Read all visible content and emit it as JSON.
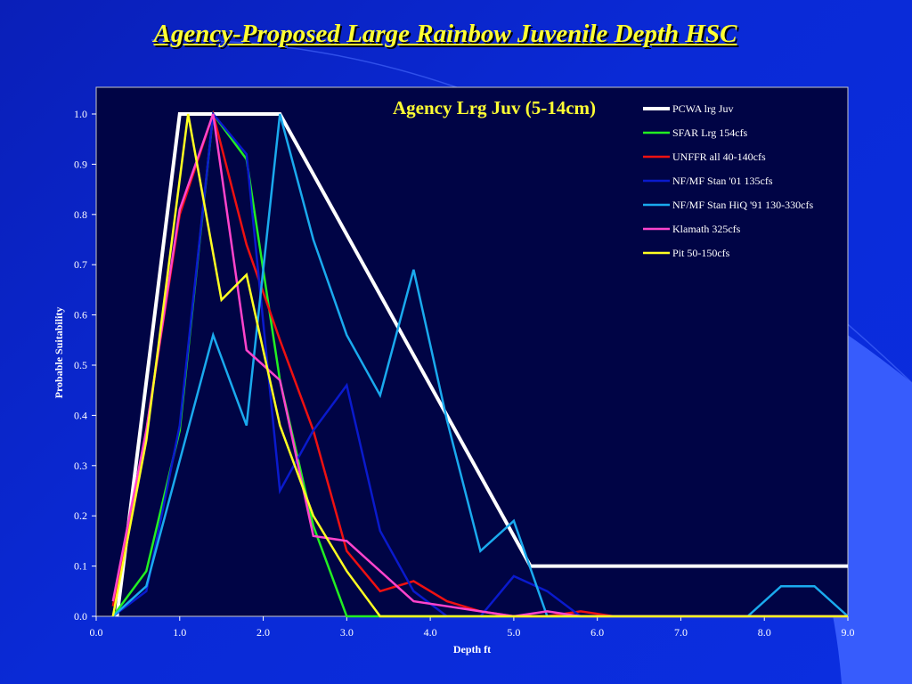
{
  "slide": {
    "title": "Agency-Proposed Large Rainbow Juvenile Depth HSC"
  },
  "colors": {
    "background": "#0b2ee0",
    "plot_background": "#000445",
    "title": "#ffff33",
    "decoration": "#3c62ff"
  },
  "chart_data": {
    "type": "line",
    "title": "Agency Lrg Juv (5-14cm)",
    "xlabel": "Depth ft",
    "ylabel": "Probable Suitability",
    "xlim": [
      0,
      9
    ],
    "ylim": [
      0,
      1
    ],
    "xticks": [
      "0.0",
      "1.0",
      "2.0",
      "3.0",
      "4.0",
      "5.0",
      "6.0",
      "7.0",
      "8.0",
      "9.0"
    ],
    "yticks": [
      "0.0",
      "0.1",
      "0.2",
      "0.3",
      "0.4",
      "0.5",
      "0.6",
      "0.7",
      "0.8",
      "0.9",
      "1.0"
    ],
    "grid": false,
    "legend_position": "top-right",
    "series": [
      {
        "name": "PCWA lrg Juv",
        "color": "#ffffff",
        "width": 4,
        "x": [
          0.25,
          1.0,
          2.2,
          5.2,
          9.0
        ],
        "y": [
          0,
          1.0,
          1.0,
          0.1,
          0.1
        ]
      },
      {
        "name": "SFAR Lrg  154cfs",
        "color": "#22ee22",
        "width": 2.5,
        "x": [
          0.2,
          0.6,
          1.0,
          1.4,
          1.8,
          2.2,
          2.6,
          3.0,
          9.0
        ],
        "y": [
          0,
          0.09,
          0.37,
          1.0,
          0.91,
          0.47,
          0.18,
          0,
          0
        ]
      },
      {
        "name": "UNFFR all 40-140cfs",
        "color": "#ee1111",
        "width": 2.5,
        "x": [
          0.2,
          0.6,
          1.0,
          1.4,
          1.8,
          2.2,
          2.6,
          3.0,
          3.4,
          3.8,
          4.2,
          4.6,
          5.0,
          5.4,
          5.8,
          6.2,
          9.0
        ],
        "y": [
          0.02,
          0.37,
          0.8,
          1.0,
          0.74,
          0.55,
          0.37,
          0.13,
          0.05,
          0.07,
          0.03,
          0.01,
          0,
          0,
          0.01,
          0,
          0
        ]
      },
      {
        "name": "NF/MF Stan '01 135cfs",
        "color": "#0a1acc",
        "width": 2.5,
        "x": [
          0.2,
          0.6,
          1.0,
          1.4,
          1.8,
          2.2,
          2.6,
          3.0,
          3.4,
          3.8,
          4.2,
          4.6,
          5.0,
          5.4,
          5.8,
          9.0
        ],
        "y": [
          0,
          0.05,
          0.38,
          1.0,
          0.92,
          0.25,
          0.37,
          0.46,
          0.17,
          0.05,
          0,
          0,
          0.08,
          0.05,
          0,
          0
        ]
      },
      {
        "name": "NF/MF Stan HiQ '91 130-330cfs",
        "color": "#1aaaee",
        "width": 2.5,
        "x": [
          0.2,
          0.6,
          1.0,
          1.4,
          1.8,
          2.2,
          2.6,
          3.0,
          3.4,
          3.8,
          4.2,
          4.6,
          5.0,
          5.4,
          5.8,
          7.0,
          7.8,
          8.2,
          8.6,
          9.0
        ],
        "y": [
          0,
          0.06,
          0.31,
          0.56,
          0.38,
          1.0,
          0.75,
          0.56,
          0.44,
          0.69,
          0.39,
          0.13,
          0.19,
          0,
          0,
          0,
          0,
          0.06,
          0.06,
          0
        ]
      },
      {
        "name": "Klamath 325cfs",
        "color": "#ff44cc",
        "width": 2.5,
        "x": [
          0.2,
          0.6,
          1.0,
          1.4,
          1.8,
          2.2,
          2.6,
          3.0,
          3.4,
          3.8,
          4.2,
          4.6,
          5.0,
          5.4,
          5.8,
          9.0
        ],
        "y": [
          0.03,
          0.37,
          0.81,
          1.0,
          0.53,
          0.47,
          0.16,
          0.15,
          0.09,
          0.03,
          0.02,
          0.01,
          0,
          0.01,
          0,
          0
        ]
      },
      {
        "name": "Pit 50-150cfs",
        "color": "#ffff22",
        "width": 2.5,
        "x": [
          0.2,
          0.6,
          1.1,
          1.5,
          1.8,
          2.2,
          2.6,
          3.0,
          3.4,
          9.0
        ],
        "y": [
          0,
          0.35,
          1.0,
          0.63,
          0.68,
          0.38,
          0.2,
          0.09,
          0,
          0
        ]
      }
    ]
  }
}
